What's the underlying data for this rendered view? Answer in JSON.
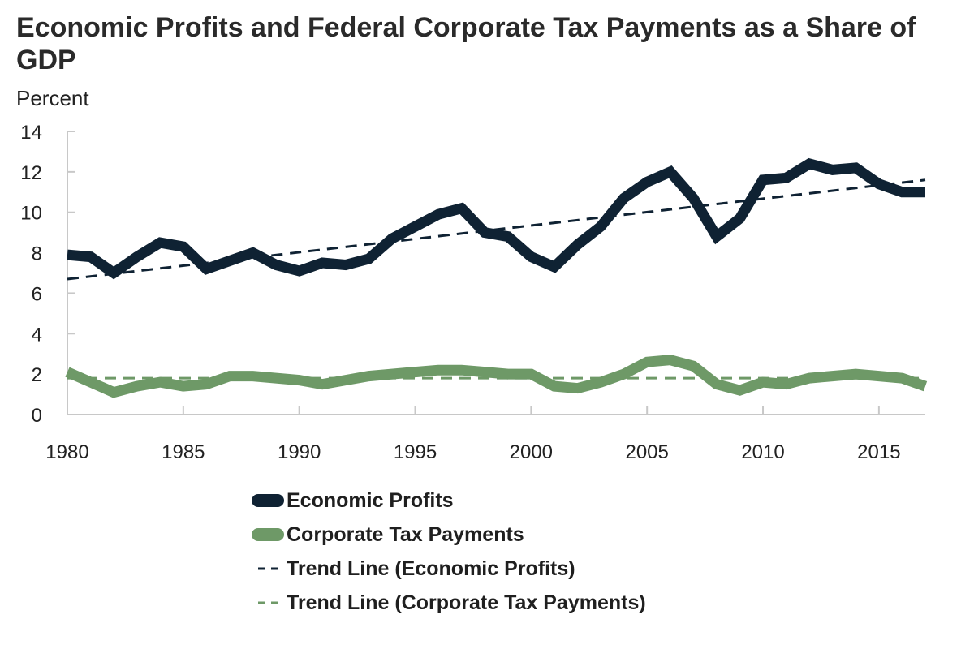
{
  "chart_data": {
    "type": "line",
    "title": "Economic Profits and Federal Corporate Tax Payments as a Share of GDP",
    "ylabel": "Percent",
    "xlabel": "",
    "xlim": [
      1980,
      2017
    ],
    "ylim": [
      0,
      14
    ],
    "y_ticks": [
      0,
      2,
      4,
      6,
      8,
      10,
      12,
      14
    ],
    "x_ticks": [
      1980,
      1985,
      1990,
      1995,
      2000,
      2005,
      2010,
      2015
    ],
    "grid": false,
    "legend_position": "bottom-center",
    "x": [
      1980,
      1981,
      1982,
      1983,
      1984,
      1985,
      1986,
      1987,
      1988,
      1989,
      1990,
      1991,
      1992,
      1993,
      1994,
      1995,
      1996,
      1997,
      1998,
      1999,
      2000,
      2001,
      2002,
      2003,
      2004,
      2005,
      2006,
      2007,
      2008,
      2009,
      2010,
      2011,
      2012,
      2013,
      2014,
      2015,
      2016,
      2017
    ],
    "series": [
      {
        "name": "Economic Profits",
        "color": "#0f2233",
        "style": "solid-thick",
        "values": [
          7.9,
          7.8,
          7.0,
          7.8,
          8.5,
          8.3,
          7.2,
          7.6,
          8.0,
          7.4,
          7.1,
          7.5,
          7.4,
          7.7,
          8.7,
          9.3,
          9.9,
          10.2,
          9.0,
          8.8,
          7.8,
          7.3,
          8.4,
          9.3,
          10.7,
          11.5,
          12.0,
          10.7,
          8.8,
          9.7,
          11.6,
          11.7,
          12.4,
          12.1,
          12.2,
          11.4,
          11.0,
          11.0
        ]
      },
      {
        "name": "Corporate Tax Payments",
        "color": "#6e9967",
        "style": "solid-thick",
        "values": [
          2.1,
          1.6,
          1.1,
          1.4,
          1.6,
          1.4,
          1.5,
          1.9,
          1.9,
          1.8,
          1.7,
          1.5,
          1.7,
          1.9,
          2.0,
          2.1,
          2.2,
          2.2,
          2.1,
          2.0,
          2.0,
          1.4,
          1.3,
          1.6,
          2.0,
          2.6,
          2.7,
          2.4,
          1.5,
          1.2,
          1.6,
          1.5,
          1.8,
          1.9,
          2.0,
          1.9,
          1.8,
          1.4
        ]
      },
      {
        "name": "Trend Line (Economic Profits)",
        "color": "#0f2233",
        "style": "dashed",
        "x": [
          1980,
          2017
        ],
        "values": [
          6.7,
          11.6
        ]
      },
      {
        "name": "Trend Line (Corporate Tax Payments)",
        "color": "#6e9967",
        "style": "dashed",
        "x": [
          1980,
          2017
        ],
        "values": [
          1.8,
          1.8
        ]
      }
    ]
  }
}
